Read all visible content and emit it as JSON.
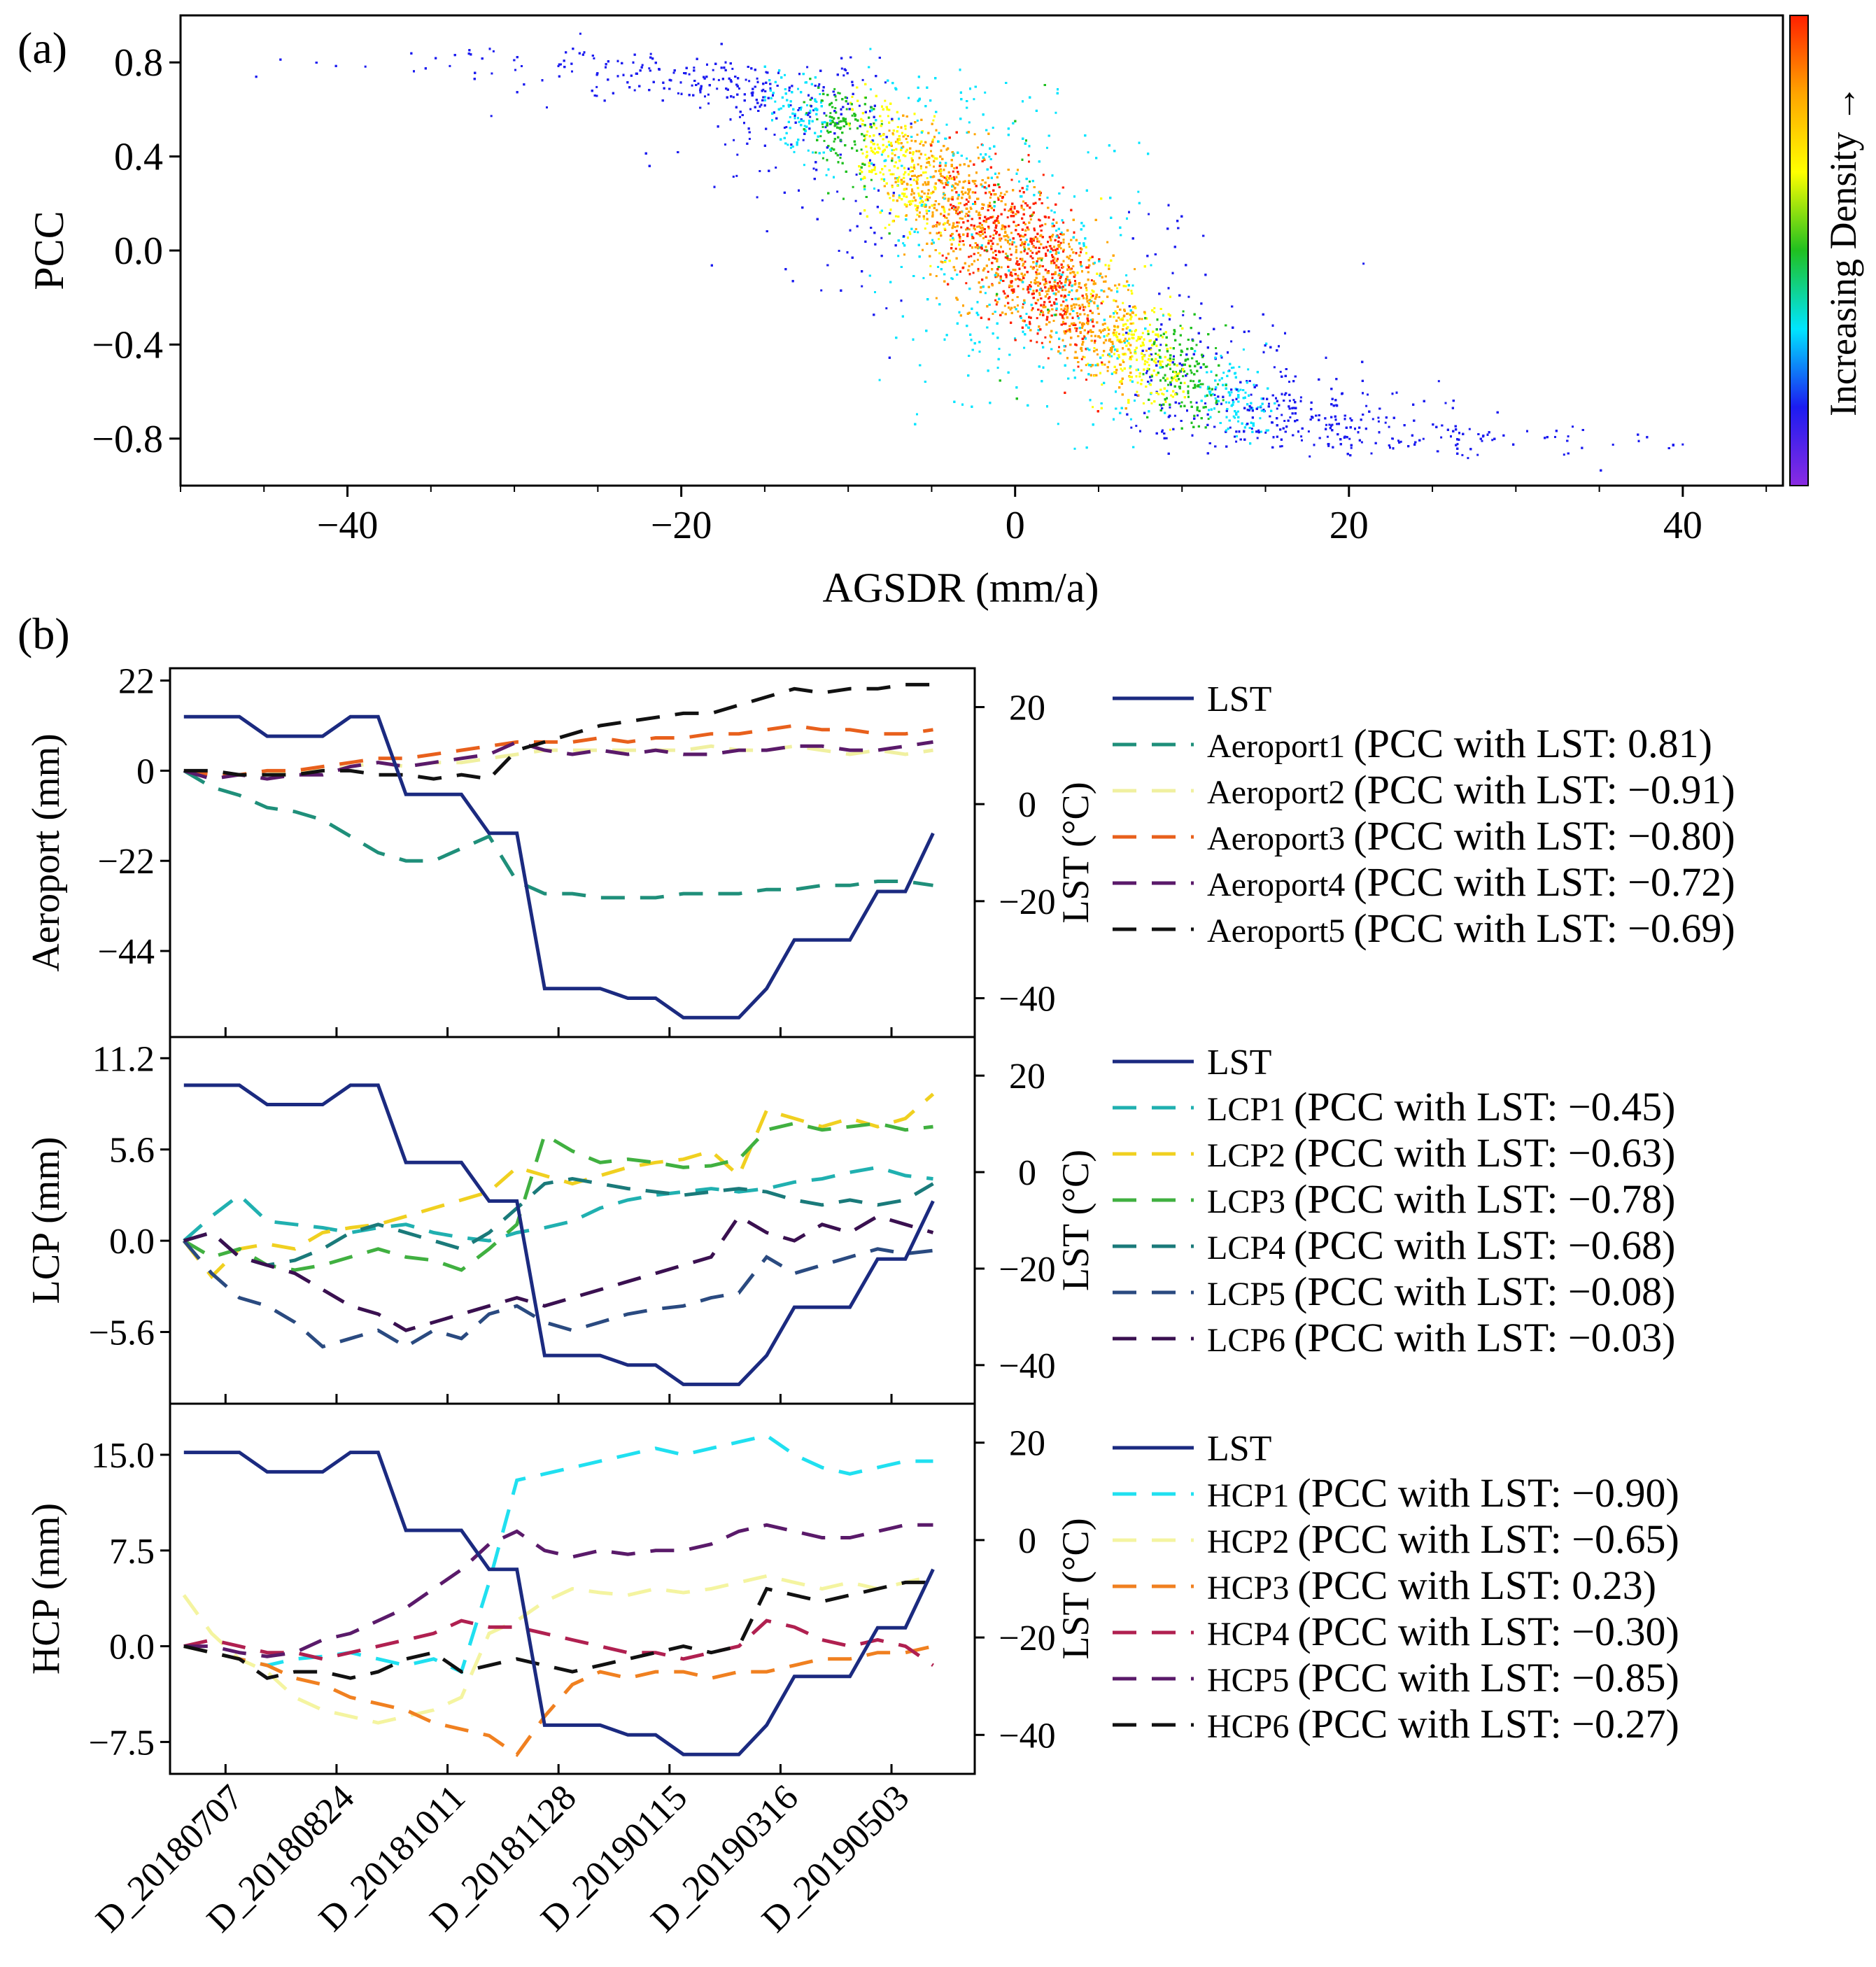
{
  "chart_data": [
    {
      "type": "scatter",
      "panel_label": "(a)",
      "title": "",
      "xlabel": "AGSDR (mm/a)",
      "ylabel": "PCC",
      "xlim": [
        -50,
        46
      ],
      "ylim": [
        -1.0,
        1.0
      ],
      "xticks": [
        -40,
        -20,
        0,
        20,
        40
      ],
      "xtick_labels": [
        "−40",
        "−20",
        "0",
        "20",
        "40"
      ],
      "yticks": [
        0.8,
        0.4,
        0.0,
        -0.4,
        -0.8
      ],
      "ytick_labels": [
        "0.8",
        "0.4",
        "0.0",
        "−0.4",
        "−0.8"
      ],
      "colorbar_label": "Increasing Density →",
      "colormap": [
        "#8a2be2",
        "#1c1cf0",
        "#00e5ff",
        "#20c020",
        "#ffff00",
        "#ffa500",
        "#ff2000"
      ],
      "point_count": 14000,
      "curve": {
        "shape": "sigmoid",
        "center_x": 0,
        "upper": 0.82,
        "lower": -0.84,
        "scale": 7.0,
        "spread_x": 6.0
      },
      "grid": false
    },
    {
      "type": "line",
      "panel_label": "(b)",
      "dates": [
        "D_20180707",
        "D_20180824",
        "D_20181011",
        "D_20181128",
        "D_20190115",
        "D_20190316",
        "D_20190503"
      ],
      "xlim": [
        -0.5,
        28.5
      ],
      "lst_values": [
        18,
        18,
        18,
        14,
        14,
        14,
        18,
        18,
        2,
        2,
        2,
        -6,
        -6,
        -38,
        -38,
        -38,
        -40,
        -40,
        -44,
        -44,
        -44,
        -38,
        -28,
        -28,
        -28,
        -18,
        -18,
        -6
      ],
      "lst_axis": {
        "label": "LST (°C)",
        "ylim": [
          -48,
          28
        ],
        "ticks": [
          20,
          0,
          -20,
          -40
        ],
        "tick_labels": [
          "20",
          "0",
          "−20",
          "−40"
        ]
      },
      "subplots": [
        {
          "ylabel": "Aeroport (mm)",
          "ylim": [
            -65,
            25
          ],
          "yticks": [
            22,
            0,
            -22,
            -44
          ],
          "ytick_labels": [
            "22",
            "0",
            "−22",
            "−44"
          ],
          "legend": {
            "lst_label": "LST"
          },
          "series": [
            {
              "name": "Aeroport1",
              "pcc": "(PCC with LST: 0.81)",
              "color": "#1f8f7a",
              "values": [
                0,
                -4,
                -6,
                -9,
                -10,
                -12,
                -16,
                -20,
                -22,
                -22,
                -19,
                -16,
                -27,
                -30,
                -30,
                -31,
                -31,
                -31,
                -30,
                -30,
                -30,
                -29,
                -29,
                -28,
                -28,
                -27,
                -27,
                -28
              ]
            },
            {
              "name": "Aeroport2",
              "pcc": "(PCC with LST: −0.91)",
              "color": "#f0f0a0",
              "values": [
                0,
                -1,
                -1,
                -1,
                0,
                0,
                1,
                2,
                1,
                2,
                2,
                3,
                4,
                5,
                5,
                5,
                5,
                5,
                5,
                6,
                5,
                5,
                6,
                5,
                4,
                5,
                4,
                5
              ]
            },
            {
              "name": "Aeroport3",
              "pcc": "(PCC with LST: −0.80)",
              "color": "#e8601c",
              "values": [
                0,
                -1,
                -1,
                0,
                0,
                1,
                2,
                3,
                3,
                4,
                5,
                6,
                7,
                7,
                7,
                8,
                7,
                8,
                8,
                9,
                9,
                10,
                11,
                10,
                10,
                9,
                9,
                10
              ]
            },
            {
              "name": "Aeroport4",
              "pcc": "(PCC with LST: −0.72)",
              "color": "#5a1a6a",
              "values": [
                0,
                -2,
                -1,
                -2,
                -1,
                -1,
                1,
                2,
                1,
                2,
                3,
                4,
                7,
                5,
                4,
                5,
                4,
                5,
                4,
                4,
                5,
                5,
                6,
                6,
                5,
                5,
                6,
                7
              ]
            },
            {
              "name": "Aeroport5",
              "pcc": "(PCC with LST: −0.69)",
              "color": "#111111",
              "values": [
                0,
                0,
                -1,
                -1,
                -1,
                0,
                0,
                -1,
                -1,
                -2,
                -1,
                -2,
                5,
                7,
                9,
                11,
                12,
                13,
                14,
                14,
                16,
                18,
                20,
                19,
                20,
                20,
                21,
                21
              ]
            }
          ]
        },
        {
          "ylabel": "LCP (mm)",
          "ylim": [
            -10,
            12.5
          ],
          "yticks": [
            11.2,
            5.6,
            0.0,
            -5.6
          ],
          "ytick_labels": [
            "11.2",
            "5.6",
            "0.0",
            "−5.6"
          ],
          "legend": {
            "lst_label": "LST"
          },
          "series": [
            {
              "name": "LCP1",
              "pcc": "(PCC with LST: −0.45)",
              "color": "#20b0b0",
              "values": [
                0,
                1.5,
                2.8,
                1.2,
                1.0,
                0.8,
                0.5,
                0.8,
                1.0,
                0.5,
                0.2,
                0.0,
                0.5,
                0.8,
                1.2,
                2.0,
                2.5,
                2.8,
                3.0,
                3.2,
                3.0,
                3.2,
                3.6,
                3.8,
                4.2,
                4.5,
                4.0,
                3.8
              ]
            },
            {
              "name": "LCP2",
              "pcc": "(PCC with LST: −0.63)",
              "color": "#f0d020",
              "values": [
                0,
                -2.2,
                -0.5,
                -0.2,
                -0.5,
                0.5,
                0.8,
                1.0,
                1.5,
                2.0,
                2.5,
                3.0,
                4.5,
                4.0,
                3.5,
                4.0,
                4.5,
                4.8,
                5.0,
                5.5,
                4.0,
                8.0,
                7.5,
                7.0,
                7.5,
                7.0,
                7.5,
                9.0
              ]
            },
            {
              "name": "LCP3",
              "pcc": "(PCC with LST: −0.78)",
              "color": "#40b040",
              "values": [
                0,
                -1.0,
                -0.5,
                -1.5,
                -1.8,
                -1.5,
                -1.0,
                -0.5,
                -1.0,
                -1.2,
                -1.8,
                -0.5,
                1.0,
                6.5,
                5.5,
                4.8,
                5.0,
                4.8,
                4.5,
                4.6,
                5.0,
                6.8,
                7.2,
                6.8,
                7.0,
                7.2,
                6.8,
                7.0
              ]
            },
            {
              "name": "LCP4",
              "pcc": "(PCC with LST: −0.68)",
              "color": "#1a7a7a",
              "values": [
                0,
                0.5,
                -1.0,
                -1.5,
                -1.2,
                -0.5,
                0.5,
                1.0,
                0.5,
                0.0,
                -0.5,
                0.5,
                2.0,
                3.5,
                3.8,
                3.5,
                3.2,
                3.0,
                2.8,
                3.0,
                3.2,
                3.0,
                2.5,
                2.2,
                2.5,
                2.2,
                2.5,
                3.5
              ]
            },
            {
              "name": "LCP5",
              "pcc": "(PCC with LST: −0.08)",
              "color": "#2a4a80",
              "values": [
                0,
                -2.0,
                -3.5,
                -4.0,
                -5.0,
                -6.5,
                -6.0,
                -5.5,
                -6.5,
                -5.5,
                -6.0,
                -4.5,
                -4.0,
                -5.0,
                -5.5,
                -5.0,
                -4.5,
                -4.2,
                -4.0,
                -3.5,
                -3.2,
                -1.0,
                -2.0,
                -1.5,
                -1.0,
                -0.5,
                -0.8,
                -0.6
              ]
            },
            {
              "name": "LCP6",
              "pcc": "(PCC with LST: −0.03)",
              "color": "#3a1050",
              "values": [
                0,
                0.5,
                -1.0,
                -1.5,
                -2.0,
                -3.0,
                -4.0,
                -4.5,
                -5.5,
                -5.0,
                -4.5,
                -4.0,
                -3.5,
                -4.0,
                -3.5,
                -3.0,
                -2.5,
                -2.0,
                -1.5,
                -1.0,
                1.5,
                0.5,
                0.0,
                1.0,
                0.5,
                1.5,
                1.0,
                0.5
              ]
            }
          ]
        },
        {
          "ylabel": "HCP (mm)",
          "ylim": [
            -10,
            19
          ],
          "yticks": [
            15.0,
            7.5,
            0.0,
            -7.5
          ],
          "ytick_labels": [
            "15.0",
            "7.5",
            "0.0",
            "−7.5"
          ],
          "legend": {
            "lst_label": "LST"
          },
          "series": [
            {
              "name": "HCP1",
              "pcc": "(PCC with LST: −0.90)",
              "color": "#20e0f0",
              "values": [
                0,
                -0.5,
                -1.0,
                -1.5,
                -1.0,
                -0.8,
                -0.5,
                -1.0,
                -1.5,
                -1.0,
                -2.0,
                5.0,
                13.0,
                13.5,
                14.0,
                14.5,
                15.0,
                15.5,
                15.0,
                15.5,
                16.0,
                16.5,
                15.0,
                14.0,
                13.5,
                14.0,
                14.5,
                14.5
              ]
            },
            {
              "name": "HCP2",
              "pcc": "(PCC with LST: −0.65)",
              "color": "#f4f4a0",
              "values": [
                4.0,
                1.0,
                -1.0,
                -2.0,
                -4.0,
                -5.0,
                -5.5,
                -6.0,
                -5.5,
                -5.0,
                -4.0,
                1.0,
                2.0,
                3.5,
                4.5,
                4.2,
                4.0,
                4.5,
                4.2,
                4.5,
                5.0,
                5.5,
                5.0,
                4.5,
                5.0,
                4.5,
                5.0,
                5.5
              ]
            },
            {
              "name": "HCP3",
              "pcc": "(PCC with LST: 0.23)",
              "color": "#f08020",
              "values": [
                0,
                -0.5,
                -1.0,
                -1.5,
                -2.5,
                -3.0,
                -4.0,
                -4.5,
                -5.0,
                -6.0,
                -6.5,
                -7.0,
                -8.5,
                -5.5,
                -3.0,
                -2.0,
                -2.5,
                -2.0,
                -2.0,
                -2.5,
                -2.0,
                -2.0,
                -1.5,
                -1.0,
                -1.0,
                -0.5,
                -0.5,
                0.0
              ]
            },
            {
              "name": "HCP4",
              "pcc": "(PCC with LST: −0.30)",
              "color": "#b02050",
              "values": [
                0,
                0.5,
                0.0,
                -0.5,
                -0.5,
                -1.0,
                -0.5,
                0.0,
                0.5,
                1.0,
                2.0,
                1.5,
                1.5,
                1.0,
                0.5,
                0.0,
                -0.5,
                -0.5,
                -1.0,
                -0.5,
                0.0,
                2.0,
                1.5,
                0.5,
                0.0,
                0.5,
                0.0,
                -1.5
              ]
            },
            {
              "name": "HCP5",
              "pcc": "(PCC with LST: −0.85)",
              "color": "#5a1a6a",
              "values": [
                0,
                0.0,
                -0.5,
                -0.8,
                -0.5,
                0.5,
                1.0,
                2.0,
                3.0,
                4.5,
                6.0,
                8.0,
                9.0,
                7.5,
                7.0,
                7.5,
                7.2,
                7.5,
                7.5,
                8.0,
                9.0,
                9.5,
                9.0,
                8.5,
                8.5,
                9.0,
                9.5,
                9.5
              ]
            },
            {
              "name": "HCP6",
              "pcc": "(PCC with LST: −0.27)",
              "color": "#111111",
              "values": [
                0,
                -0.5,
                -1.0,
                -2.5,
                -2.0,
                -2.0,
                -2.5,
                -2.0,
                -1.0,
                -0.5,
                -2.0,
                -1.5,
                -1.0,
                -1.5,
                -2.0,
                -1.5,
                -1.0,
                -0.5,
                0.0,
                -0.5,
                0.0,
                4.5,
                4.0,
                3.5,
                4.0,
                4.5,
                5.0,
                5.0
              ]
            }
          ]
        }
      ]
    }
  ]
}
